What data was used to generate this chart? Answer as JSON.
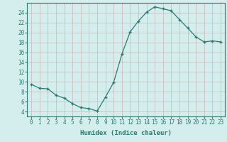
{
  "x": [
    0,
    1,
    2,
    3,
    4,
    5,
    6,
    7,
    8,
    9,
    10,
    11,
    12,
    13,
    14,
    15,
    16,
    17,
    18,
    19,
    20,
    21,
    22,
    23
  ],
  "y": [
    9.5,
    8.7,
    8.6,
    7.3,
    6.7,
    5.6,
    4.8,
    4.6,
    4.1,
    6.9,
    9.9,
    15.6,
    20.1,
    22.3,
    24.1,
    25.2,
    24.8,
    24.4,
    22.6,
    20.9,
    19.1,
    18.1,
    18.3,
    18.1
  ],
  "xlabel": "Humidex (Indice chaleur)",
  "xlim": [
    -0.5,
    23.5
  ],
  "ylim": [
    3,
    26
  ],
  "yticks": [
    4,
    6,
    8,
    10,
    12,
    14,
    16,
    18,
    20,
    22,
    24
  ],
  "xticks": [
    0,
    1,
    2,
    3,
    4,
    5,
    6,
    7,
    8,
    9,
    10,
    11,
    12,
    13,
    14,
    15,
    16,
    17,
    18,
    19,
    20,
    21,
    22,
    23
  ],
  "line_color": "#2a7a6e",
  "bg_color": "#d4eeee",
  "grid_color": "#b8d8d8",
  "tick_fontsize": 5.5,
  "label_fontsize": 6.5
}
